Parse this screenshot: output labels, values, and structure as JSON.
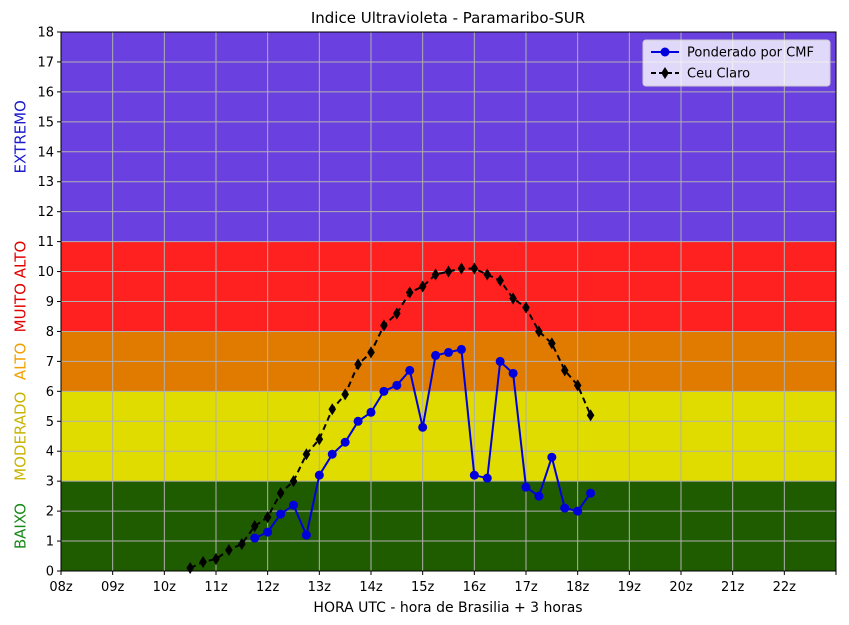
{
  "chart_data": {
    "type": "line",
    "title": "Indice Ultravioleta - Paramaribo-SUR",
    "xlabel": "HORA UTC - hora de Brasilia + 3 horas",
    "ylabel": "",
    "x_ticks": [
      "08z",
      "09z",
      "10z",
      "11z",
      "12z",
      "13z",
      "14z",
      "15z",
      "16z",
      "17z",
      "18z",
      "19z",
      "20z",
      "21z",
      "22z",
      ""
    ],
    "xlim": [
      8,
      23
    ],
    "ylim": [
      0,
      18
    ],
    "y_ticks": [
      0,
      1,
      2,
      3,
      4,
      5,
      6,
      7,
      8,
      9,
      10,
      11,
      12,
      13,
      14,
      15,
      16,
      17,
      18
    ],
    "grid": true,
    "legend_position": "top-right",
    "bands": [
      {
        "label": "BAIXO",
        "from": 0,
        "to": 3,
        "color": "#1f5c00",
        "label_color": "#1a8a1a"
      },
      {
        "label": "MODERADO",
        "from": 3,
        "to": 6,
        "color": "#e0dc00",
        "label_color": "#c8b400"
      },
      {
        "label": "ALTO",
        "from": 6,
        "to": 8,
        "color": "#e07b00",
        "label_color": "#f0a000"
      },
      {
        "label": "MUITO ALTO",
        "from": 8,
        "to": 11,
        "color": "#ff2020",
        "label_color": "#e00000"
      },
      {
        "label": "EXTREMO",
        "from": 11,
        "to": 18,
        "color": "#6a40e0",
        "label_color": "#1a1acc"
      }
    ],
    "series": [
      {
        "name": "Ponderado por CMF",
        "color": "#0000dd",
        "marker": "circle",
        "dash": false,
        "x": [
          11.75,
          12.0,
          12.25,
          12.5,
          12.75,
          13.0,
          13.25,
          13.5,
          13.75,
          14.0,
          14.25,
          14.5,
          14.75,
          15.0,
          15.25,
          15.5,
          15.75,
          16.0,
          16.25,
          16.5,
          16.75,
          17.0,
          17.25,
          17.5,
          17.75,
          18.0,
          18.25
        ],
        "y": [
          1.1,
          1.3,
          1.9,
          2.2,
          1.2,
          3.2,
          3.9,
          4.3,
          5.0,
          5.3,
          6.0,
          6.2,
          6.7,
          4.8,
          7.2,
          7.3,
          7.4,
          3.2,
          3.1,
          7.0,
          6.6,
          2.8,
          2.5,
          3.8,
          2.1,
          2.0,
          2.6
        ]
      },
      {
        "name": "Ceu Claro",
        "color": "#000000",
        "marker": "diamond",
        "dash": true,
        "x": [
          10.5,
          10.75,
          11.0,
          11.25,
          11.5,
          11.75,
          12.0,
          12.25,
          12.5,
          12.75,
          13.0,
          13.25,
          13.5,
          13.75,
          14.0,
          14.25,
          14.5,
          14.75,
          15.0,
          15.25,
          15.5,
          15.75,
          16.0,
          16.25,
          16.5,
          16.75,
          17.0,
          17.25,
          17.5,
          17.75,
          18.0,
          18.25
        ],
        "y": [
          0.1,
          0.3,
          0.4,
          0.7,
          0.9,
          1.5,
          1.8,
          2.6,
          3.0,
          3.9,
          4.4,
          5.4,
          5.9,
          6.9,
          7.3,
          8.2,
          8.6,
          9.3,
          9.5,
          9.9,
          10.0,
          10.1,
          10.1,
          9.9,
          9.7,
          9.1,
          8.8,
          8.0,
          7.6,
          6.7,
          6.2,
          5.2
        ]
      }
    ]
  }
}
